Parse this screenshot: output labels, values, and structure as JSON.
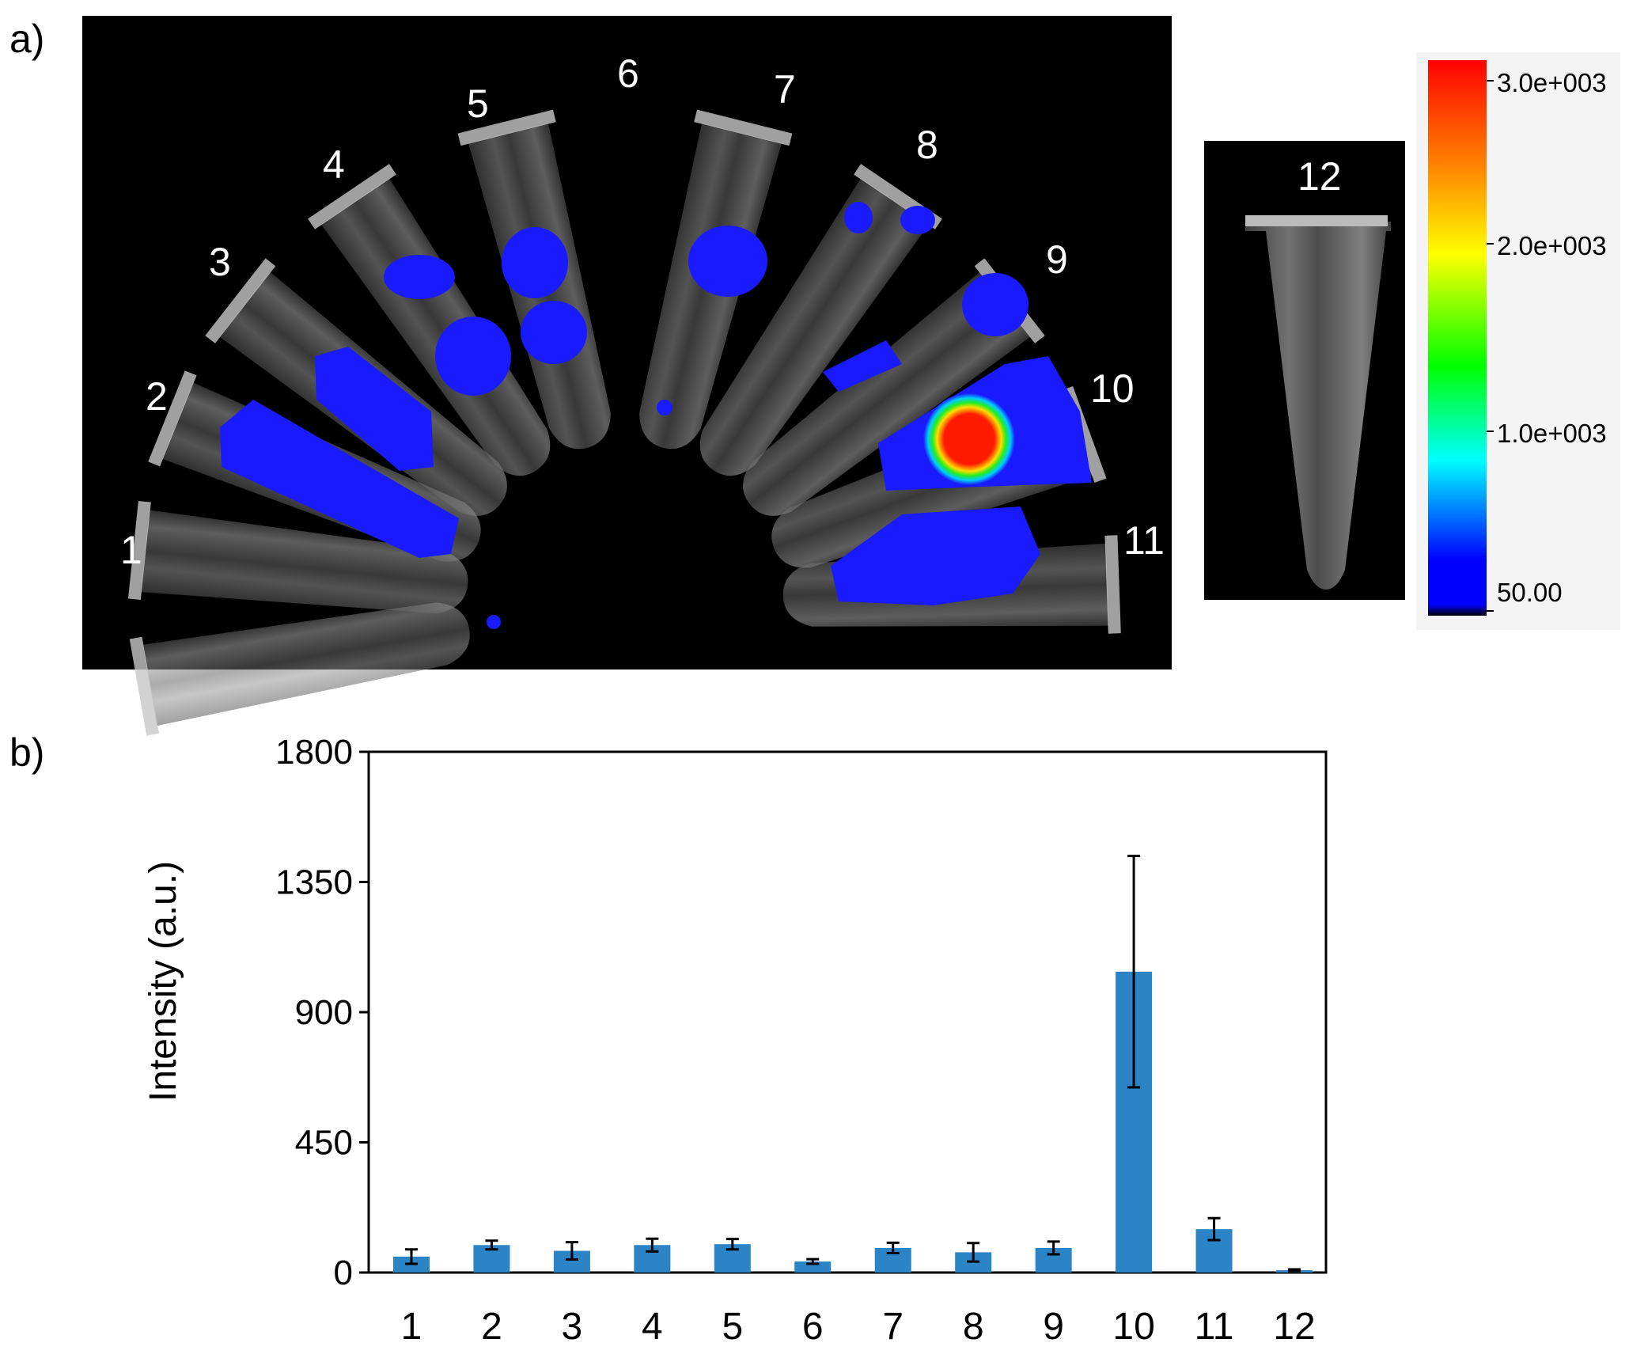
{
  "panel_a": {
    "label": "a)",
    "tube_labels": [
      "1",
      "2",
      "3",
      "4",
      "5",
      "6",
      "7",
      "8",
      "9",
      "10",
      "11"
    ],
    "inset_label": "12",
    "colorbar": {
      "ticks": [
        "3.0e+003",
        "2.0e+003",
        "1.0e+003",
        "50.00"
      ],
      "colors": [
        "#ff0000",
        "#ff8c00",
        "#ffff00",
        "#00ff00",
        "#00ffff",
        "#0000ff",
        "#000000"
      ]
    }
  },
  "panel_b": {
    "label": "b)"
  },
  "colors": {
    "bar": "#2a84c6",
    "signal_blue": "#1a1aff",
    "hotspot_red": "#ff1a00"
  },
  "chart_data": {
    "type": "bar",
    "title": "",
    "xlabel": "",
    "ylabel": "Intensity (a.u.)",
    "ylim": [
      0,
      1800
    ],
    "yticks": [
      "0",
      "450",
      "900",
      "1350",
      "1800"
    ],
    "categories": [
      "1",
      "2",
      "3",
      "4",
      "5",
      "6",
      "7",
      "8",
      "9",
      "10",
      "11",
      "12"
    ],
    "values": [
      55,
      95,
      75,
      95,
      98,
      38,
      85,
      70,
      85,
      1040,
      150,
      8
    ],
    "errors": [
      25,
      15,
      30,
      22,
      18,
      8,
      18,
      32,
      22,
      400,
      38,
      3
    ],
    "grid": false
  }
}
